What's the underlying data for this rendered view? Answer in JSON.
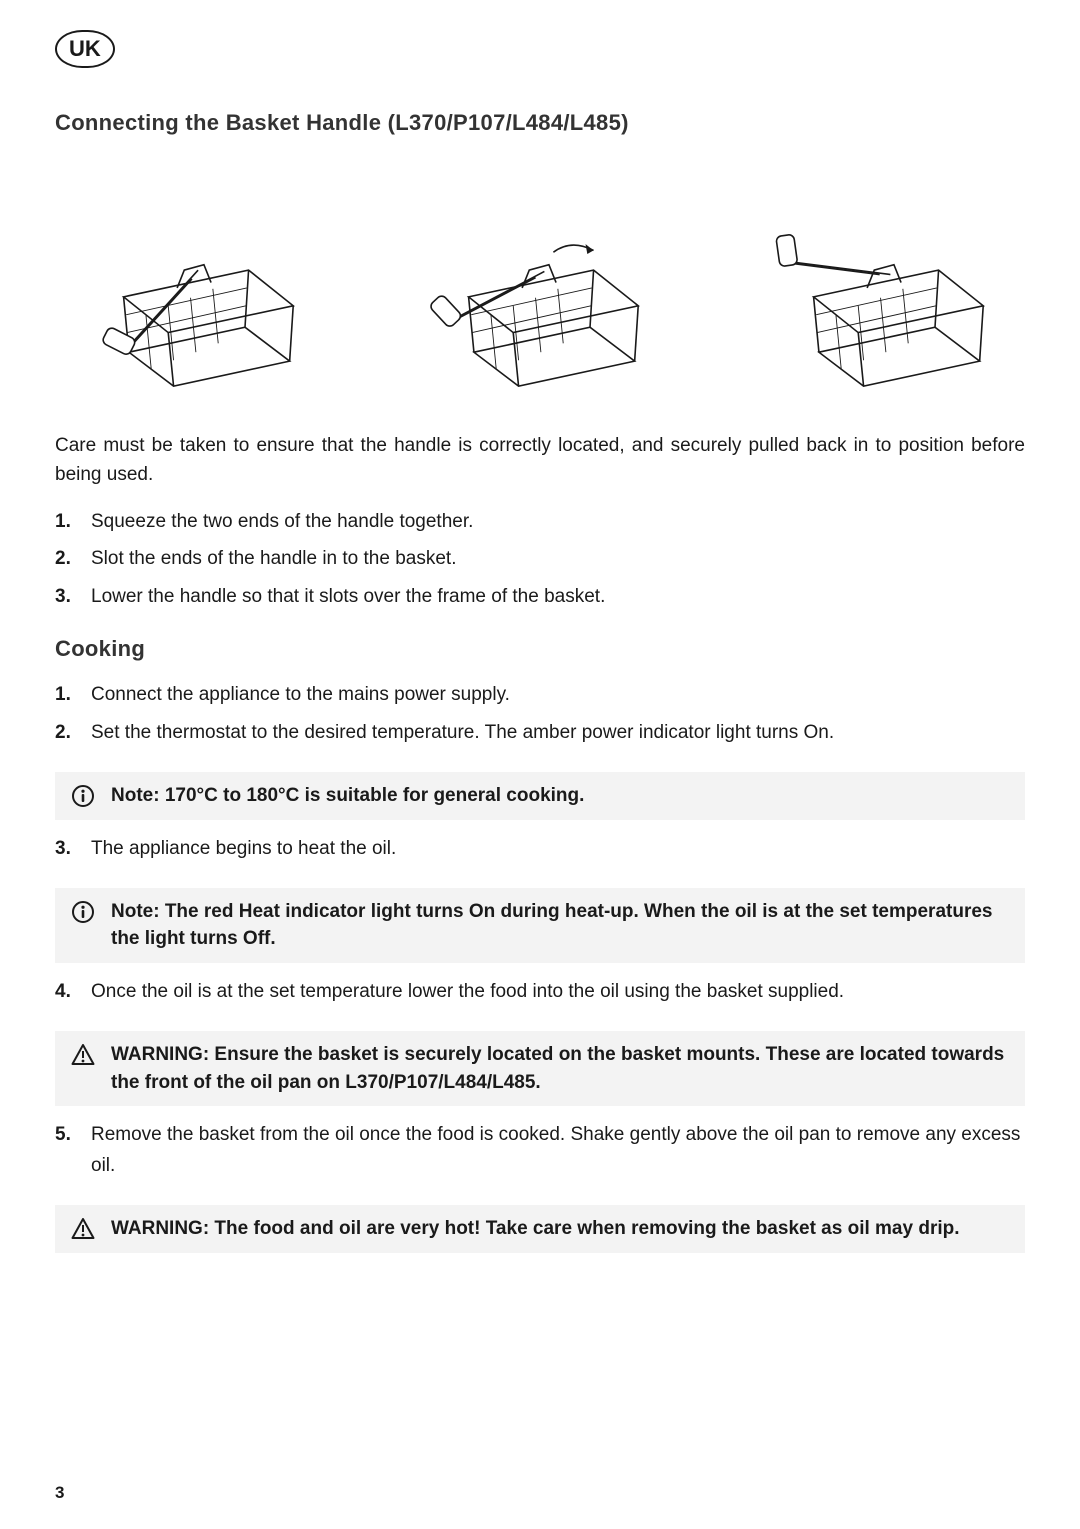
{
  "region_badge": "UK",
  "section1": {
    "title": "Connecting the Basket Handle (L370/P107/L484/L485)",
    "intro": "Care must be taken to ensure that the handle is correctly located, and securely pulled back in to position before being used.",
    "steps": [
      "Squeeze the two ends of the handle together.",
      "Slot the ends of the handle in to the basket.",
      "Lower the handle so that it slots over the frame of the basket."
    ],
    "figures": [
      {
        "name": "basket-handle-step-1",
        "handle_rot": -55,
        "show_back_arrow": false
      },
      {
        "name": "basket-handle-step-2",
        "handle_rot": -35,
        "show_back_arrow": true
      },
      {
        "name": "basket-handle-step-3",
        "handle_rot": 0,
        "show_back_arrow": false
      }
    ]
  },
  "section2": {
    "title": "Cooking",
    "items": [
      {
        "type": "step",
        "text": "Connect the appliance to the mains power supply."
      },
      {
        "type": "step",
        "text": "Set the thermostat to the desired temperature. The amber power indicator light turns On."
      },
      {
        "type": "note",
        "text": "Note: 170°C to 180°C is suitable for general cooking."
      },
      {
        "type": "step",
        "text": "The appliance begins to heat the oil."
      },
      {
        "type": "note",
        "text": "Note: The red Heat indicator light turns On during heat-up. When the oil is at the set temperatures the light turns Off."
      },
      {
        "type": "step",
        "text": "Once the oil is at the set temperature lower the food into the oil using the basket supplied."
      },
      {
        "type": "warning",
        "text": "WARNING: Ensure the basket is securely located on the basket mounts. These are located towards the front of the oil pan on L370/P107/L484/L485."
      },
      {
        "type": "step",
        "text": "Remove the basket from the oil once the food is cooked. Shake gently above the oil pan to remove any excess oil."
      },
      {
        "type": "warning",
        "text": "WARNING: The food and oil are very hot! Take care when removing the basket as oil may drip."
      }
    ]
  },
  "page_number": "3",
  "style": {
    "callout_bg": "#f3f3f3",
    "text_color": "#1a1a1a",
    "stroke": "#1a1a1a",
    "stroke_width": 1.8
  }
}
